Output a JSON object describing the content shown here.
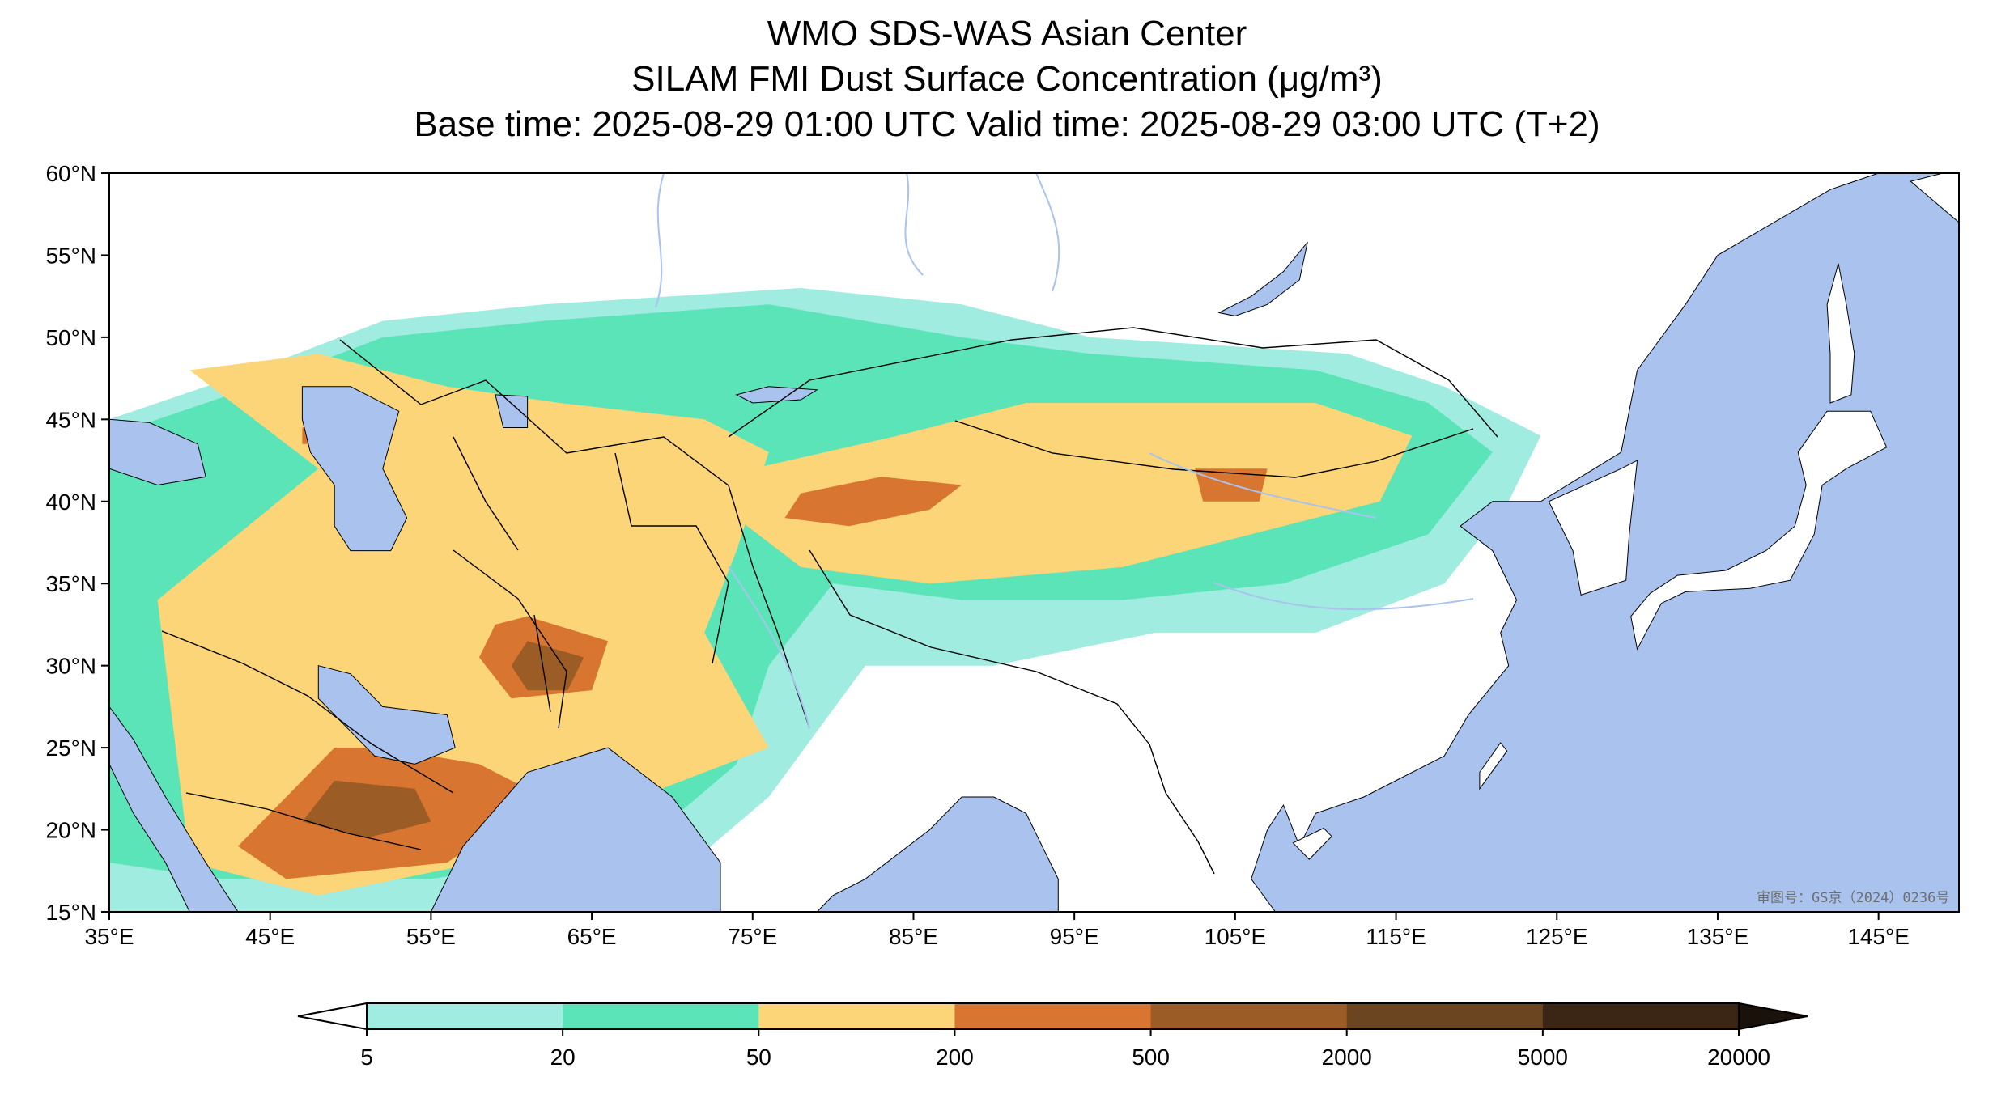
{
  "title": {
    "line1": "WMO SDS-WAS Asian Center",
    "line2": "SILAM FMI Dust Surface Concentration (μg/m³)",
    "line3": "Base time: 2025-08-29 01:00 UTC Valid time: 2025-08-29 03:00 UTC (T+2)"
  },
  "map": {
    "lon_range": [
      35,
      150
    ],
    "lat_range": [
      15,
      60
    ],
    "lon_ticks": [
      "35°E",
      "45°E",
      "55°E",
      "65°E",
      "75°E",
      "85°E",
      "95°E",
      "105°E",
      "115°E",
      "125°E",
      "135°E",
      "145°E"
    ],
    "lat_ticks": [
      "60°N",
      "55°N",
      "50°N",
      "45°N",
      "40°N",
      "35°N",
      "30°N",
      "25°N",
      "20°N",
      "15°N"
    ],
    "ocean_color": "#a9c3ee",
    "land_color": "#ffffff",
    "watermark": "审图号：GS京（2024）0236号",
    "dust_regions": [
      {
        "level": 1,
        "color": "#a0ece0",
        "polygon": [
          [
            35,
            45
          ],
          [
            44,
            48
          ],
          [
            52,
            51
          ],
          [
            62,
            52
          ],
          [
            78,
            53
          ],
          [
            88,
            52
          ],
          [
            96,
            50
          ],
          [
            112,
            49
          ],
          [
            118,
            47
          ],
          [
            124,
            44
          ],
          [
            122,
            40
          ],
          [
            118,
            35
          ],
          [
            110,
            32
          ],
          [
            100,
            32
          ],
          [
            90,
            30
          ],
          [
            82,
            30
          ],
          [
            76,
            22
          ],
          [
            70,
            17
          ],
          [
            55,
            15
          ],
          [
            35,
            15
          ]
        ]
      },
      {
        "level": 2,
        "color": "#5ae4b8",
        "polygon": [
          [
            35,
            44
          ],
          [
            44,
            47
          ],
          [
            52,
            50
          ],
          [
            62,
            51
          ],
          [
            76,
            52
          ],
          [
            88,
            50
          ],
          [
            96,
            49
          ],
          [
            110,
            48
          ],
          [
            117,
            46
          ],
          [
            121,
            43
          ],
          [
            117,
            38
          ],
          [
            108,
            35
          ],
          [
            98,
            34
          ],
          [
            88,
            34
          ],
          [
            80,
            35
          ],
          [
            76,
            30
          ],
          [
            74,
            24
          ],
          [
            68,
            19
          ],
          [
            55,
            17
          ],
          [
            42,
            17
          ],
          [
            35,
            18
          ]
        ]
      },
      {
        "level": 3,
        "color": "#fbd577",
        "polygon": [
          [
            40,
            48
          ],
          [
            48,
            49
          ],
          [
            56,
            47
          ],
          [
            63,
            46
          ],
          [
            72,
            45
          ],
          [
            76,
            43
          ],
          [
            74,
            37
          ],
          [
            72,
            32
          ],
          [
            76,
            25
          ],
          [
            68,
            22
          ],
          [
            62,
            21
          ],
          [
            58,
            18
          ],
          [
            48,
            16
          ],
          [
            40,
            18
          ],
          [
            39,
            26
          ],
          [
            38,
            34
          ],
          [
            43,
            38
          ],
          [
            48,
            42
          ]
        ]
      },
      {
        "level": 3,
        "color": "#fbd577",
        "polygon": [
          [
            75,
            42
          ],
          [
            84,
            44
          ],
          [
            92,
            46
          ],
          [
            100,
            46
          ],
          [
            110,
            46
          ],
          [
            116,
            44
          ],
          [
            114,
            40
          ],
          [
            106,
            38
          ],
          [
            98,
            36
          ],
          [
            86,
            35
          ],
          [
            78,
            36
          ],
          [
            74,
            39
          ]
        ]
      },
      {
        "level": 4,
        "color": "#d87530",
        "polygon": [
          [
            52,
            25
          ],
          [
            58,
            24
          ],
          [
            62,
            22
          ],
          [
            56,
            18
          ],
          [
            46,
            17
          ],
          [
            43,
            19
          ],
          [
            46,
            22
          ],
          [
            49,
            25
          ]
        ]
      },
      {
        "level": 4,
        "color": "#d87530",
        "polygon": [
          [
            78,
            40.5
          ],
          [
            83,
            41.5
          ],
          [
            88,
            41
          ],
          [
            86,
            39.5
          ],
          [
            81,
            38.5
          ],
          [
            77,
            39
          ]
        ]
      },
      {
        "level": 4,
        "color": "#d87530",
        "polygon": [
          [
            61,
            33
          ],
          [
            66,
            31.5
          ],
          [
            65,
            28.5
          ],
          [
            60,
            28
          ],
          [
            58,
            30.5
          ],
          [
            59,
            32.5
          ]
        ]
      },
      {
        "level": 4,
        "color": "#d87530",
        "polygon": [
          [
            102.5,
            42
          ],
          [
            107,
            42
          ],
          [
            106.5,
            40
          ],
          [
            103,
            40
          ]
        ]
      },
      {
        "level": 4,
        "color": "#d87530",
        "polygon": [
          [
            47,
            44.5
          ],
          [
            51,
            45
          ],
          [
            50,
            43.5
          ],
          [
            47,
            43.5
          ]
        ]
      },
      {
        "level": 5,
        "color": "#9b5c26",
        "polygon": [
          [
            49,
            23
          ],
          [
            54,
            22.5
          ],
          [
            55,
            20.5
          ],
          [
            51,
            19.5
          ],
          [
            47,
            20.5
          ]
        ]
      },
      {
        "level": 5,
        "color": "#9b5c26",
        "polygon": [
          [
            61,
            31.5
          ],
          [
            64.5,
            30.5
          ],
          [
            63.5,
            28.5
          ],
          [
            61,
            28.5
          ],
          [
            60,
            30
          ]
        ]
      }
    ],
    "water_bodies": [
      {
        "name": "caspian-sea",
        "polygon": [
          [
            47,
            47
          ],
          [
            50,
            47
          ],
          [
            53,
            45.5
          ],
          [
            52,
            42
          ],
          [
            53.5,
            39
          ],
          [
            52.5,
            37
          ],
          [
            50,
            37
          ],
          [
            49,
            38.5
          ],
          [
            49,
            41
          ],
          [
            47.5,
            43
          ],
          [
            47,
            45
          ]
        ]
      },
      {
        "name": "black-sea",
        "polygon": [
          [
            35,
            42
          ],
          [
            38,
            41
          ],
          [
            41,
            41.5
          ],
          [
            40.5,
            43.5
          ],
          [
            37.5,
            44.8
          ],
          [
            35,
            45
          ]
        ]
      },
      {
        "name": "persian-gulf",
        "polygon": [
          [
            48,
            30
          ],
          [
            50,
            29.5
          ],
          [
            52,
            27.5
          ],
          [
            56,
            27
          ],
          [
            56.5,
            25
          ],
          [
            54,
            24
          ],
          [
            51.5,
            24.5
          ],
          [
            50,
            26
          ],
          [
            48,
            28
          ]
        ]
      },
      {
        "name": "red-sea",
        "polygon": [
          [
            35,
            27.5
          ],
          [
            36.5,
            25.5
          ],
          [
            38.5,
            22
          ],
          [
            41,
            18
          ],
          [
            43,
            15
          ],
          [
            40,
            15
          ],
          [
            38.5,
            18
          ],
          [
            36.5,
            21
          ],
          [
            35,
            24
          ]
        ]
      },
      {
        "name": "arabian-sea",
        "polygon": [
          [
            57,
            19
          ],
          [
            61,
            23.5
          ],
          [
            66,
            25
          ],
          [
            70,
            22
          ],
          [
            73,
            18
          ],
          [
            73,
            15
          ],
          [
            55,
            15
          ]
        ]
      },
      {
        "name": "bay-of-bengal",
        "polygon": [
          [
            79,
            15
          ],
          [
            80,
            16
          ],
          [
            82,
            17
          ],
          [
            86,
            20
          ],
          [
            88,
            22
          ],
          [
            90,
            22
          ],
          [
            92,
            21
          ],
          [
            94,
            17
          ],
          [
            94,
            15
          ]
        ]
      },
      {
        "name": "pacific-ocean",
        "polygon": [
          [
            150,
            15
          ],
          [
            150,
            60
          ],
          [
            145,
            60
          ],
          [
            142,
            59
          ],
          [
            135,
            55
          ],
          [
            133,
            52
          ],
          [
            130,
            48
          ],
          [
            129,
            43
          ],
          [
            124,
            40
          ],
          [
            121,
            40
          ],
          [
            119,
            38.5
          ],
          [
            121,
            37
          ],
          [
            122.5,
            34
          ],
          [
            121.5,
            32
          ],
          [
            122,
            30
          ],
          [
            119.5,
            27
          ],
          [
            118,
            24.5
          ],
          [
            113,
            22
          ],
          [
            110,
            21
          ],
          [
            109,
            19
          ],
          [
            108,
            21.5
          ],
          [
            107,
            20
          ],
          [
            106,
            17
          ],
          [
            107.5,
            15
          ]
        ]
      },
      {
        "name": "baikal-lake",
        "polygon": [
          [
            104,
            51.5
          ],
          [
            106,
            52.5
          ],
          [
            108,
            54
          ],
          [
            109.5,
            55.8
          ],
          [
            109,
            53.5
          ],
          [
            107,
            52
          ],
          [
            105,
            51.3
          ]
        ]
      },
      {
        "name": "balkhash-lake",
        "polygon": [
          [
            74,
            46.5
          ],
          [
            76,
            47
          ],
          [
            79,
            46.8
          ],
          [
            78,
            46.2
          ],
          [
            75,
            46
          ]
        ]
      },
      {
        "name": "aral-sea",
        "polygon": [
          [
            59,
            46.5
          ],
          [
            61,
            46.4
          ],
          [
            61,
            44.5
          ],
          [
            59.5,
            44.5
          ]
        ]
      }
    ],
    "land_masses": [
      {
        "name": "korea",
        "polygon": [
          [
            124.5,
            40
          ],
          [
            129,
            42
          ],
          [
            130,
            42.5
          ],
          [
            129.5,
            38
          ],
          [
            129.3,
            35.2
          ],
          [
            126.5,
            34.3
          ],
          [
            126,
            37
          ]
        ]
      },
      {
        "name": "japan",
        "polygon": [
          [
            130,
            31
          ],
          [
            131.5,
            33.8
          ],
          [
            133,
            34.5
          ],
          [
            135,
            34.6
          ],
          [
            137,
            34.7
          ],
          [
            139.5,
            35.2
          ],
          [
            141,
            38
          ],
          [
            141.5,
            41
          ],
          [
            143,
            42
          ],
          [
            145.5,
            43.3
          ],
          [
            144.5,
            45.5
          ],
          [
            141.8,
            45.5
          ],
          [
            140,
            43
          ],
          [
            140.5,
            41
          ],
          [
            139.8,
            38.5
          ],
          [
            138,
            37
          ],
          [
            135.5,
            35.8
          ],
          [
            132.5,
            35.5
          ],
          [
            130.8,
            34.4
          ],
          [
            129.6,
            33
          ]
        ]
      },
      {
        "name": "sakhalin",
        "polygon": [
          [
            142,
            46
          ],
          [
            143.3,
            46.5
          ],
          [
            143.5,
            49
          ],
          [
            143,
            52
          ],
          [
            142.5,
            54.5
          ],
          [
            141.8,
            52
          ],
          [
            142,
            49
          ]
        ]
      },
      {
        "name": "taiwan",
        "polygon": [
          [
            120.2,
            22.5
          ],
          [
            121.9,
            24.8
          ],
          [
            121.5,
            25.3
          ],
          [
            120.2,
            23.5
          ]
        ]
      },
      {
        "name": "hainan",
        "polygon": [
          [
            108.6,
            19.2
          ],
          [
            110.5,
            20.1
          ],
          [
            111,
            19.6
          ],
          [
            109.6,
            18.2
          ]
        ]
      },
      {
        "name": "kamchatka-coast",
        "polygon": [
          [
            150,
            60
          ],
          [
            150,
            57
          ],
          [
            147,
            59.5
          ],
          [
            149,
            60
          ]
        ]
      }
    ]
  },
  "colorbar": {
    "labels": [
      "5",
      "20",
      "50",
      "200",
      "500",
      "2000",
      "5000",
      "20000"
    ],
    "colors": [
      "#a0ece0",
      "#5ae4b8",
      "#fbd577",
      "#d87530",
      "#9b5c26",
      "#6b4420",
      "#3b2514"
    ]
  }
}
